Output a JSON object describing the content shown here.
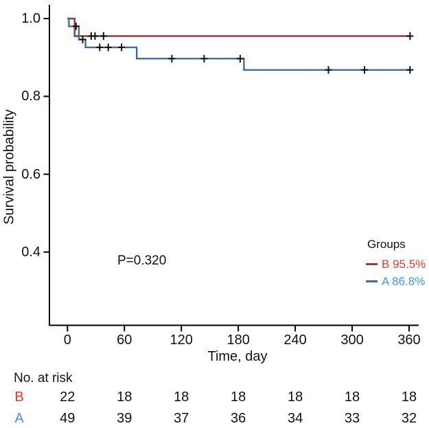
{
  "figure": {
    "legend": {
      "title": "Groups",
      "entries": [
        {
          "name": "B",
          "label": "B 95.5%",
          "line_color": "#a63138",
          "text_color": "#e8392e"
        },
        {
          "name": "A",
          "label": "A 86.8%",
          "line_color": "#3f6c9b",
          "text_color": "#4394e4"
        }
      ]
    }
  },
  "chart_data": {
    "type": "line",
    "subtype": "kaplan-meier-step",
    "title": "",
    "xlabel": "Time, day",
    "ylabel": "Survival probability",
    "annotation": "P=0.320",
    "grid": false,
    "legend_position": "inside-bottom-right",
    "xlim": [
      0,
      365
    ],
    "ylim": [
      0.2,
      1.02
    ],
    "x_ticks": [
      0,
      60,
      120,
      180,
      240,
      300,
      360
    ],
    "y_tick_labels": [
      "1.0",
      "0.8",
      "0.6",
      "0.4"
    ],
    "axis_color": "#000000",
    "censor_color": "#111111",
    "series": [
      {
        "name": "B",
        "final_survival_label": "B 95.5%",
        "final_survival": 0.955,
        "color": "#a63138",
        "steps": [
          [
            0,
            1.0
          ],
          [
            7.5,
            0.955
          ],
          [
            361,
            0.955
          ]
        ],
        "censors": [
          [
            25,
            0.955
          ],
          [
            29,
            0.955
          ],
          [
            38,
            0.955
          ],
          [
            361,
            0.955
          ]
        ]
      },
      {
        "name": "A",
        "final_survival_label": "A 86.8%",
        "final_survival": 0.868,
        "color": "#3f6c9b",
        "steps": [
          [
            0,
            1.0
          ],
          [
            1.5,
            0.98
          ],
          [
            12,
            0.946
          ],
          [
            19,
            0.926
          ],
          [
            73,
            0.897
          ],
          [
            186,
            0.868
          ],
          [
            361,
            0.868
          ]
        ],
        "censors": [
          [
            9,
            0.98
          ],
          [
            16,
            0.946
          ],
          [
            34,
            0.926
          ],
          [
            43,
            0.926
          ],
          [
            57,
            0.926
          ],
          [
            110,
            0.897
          ],
          [
            144,
            0.897
          ],
          [
            182,
            0.897
          ],
          [
            275,
            0.868
          ],
          [
            313,
            0.868
          ],
          [
            361,
            0.868
          ]
        ]
      }
    ],
    "risk_table": {
      "title": "No. at risk",
      "rows": [
        {
          "group": "B",
          "color": "#e8392e",
          "values": [
            22,
            18,
            18,
            18,
            18,
            18,
            18
          ]
        },
        {
          "group": "A",
          "color": "#4394e4",
          "values": [
            49,
            39,
            37,
            36,
            34,
            33,
            32
          ]
        }
      ]
    }
  }
}
